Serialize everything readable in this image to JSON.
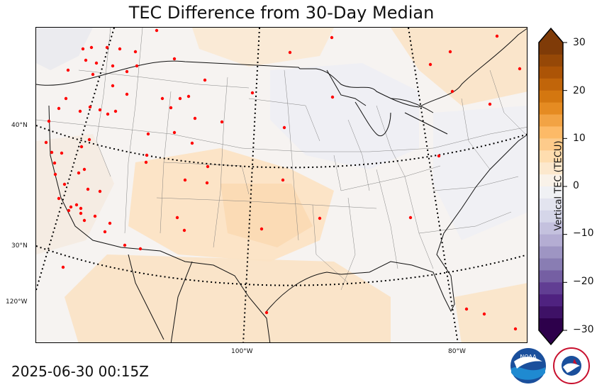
{
  "title": "TEC Difference from 30-Day Median",
  "timestamp": "2025-06-30 00:15Z",
  "map": {
    "latitude_labels": [
      "40°N",
      "30°N"
    ],
    "longitude_labels": [
      "120°W",
      "100°W",
      "80°W"
    ],
    "background_color": "#f6f3f1",
    "dot_color": "#ff0000"
  },
  "colorbar": {
    "label": "Vertical TEC (TECU)",
    "ticks": [
      "30",
      "20",
      "10",
      "0",
      "−10",
      "−20",
      "−30"
    ],
    "min": -30,
    "max": 30,
    "colors_top_to_bottom": [
      "#7f3b08",
      "#b35806",
      "#e08214",
      "#fdb863",
      "#fee0b6",
      "#f7f7f7",
      "#d8daeb",
      "#b2abd2",
      "#8073ac",
      "#542788",
      "#2d004b"
    ]
  },
  "logos": {
    "noaa": "NOAA",
    "nws": "NATIONAL WEATHER SERVICE"
  },
  "icons": [
    "noaa-logo-icon",
    "nws-logo-icon"
  ]
}
